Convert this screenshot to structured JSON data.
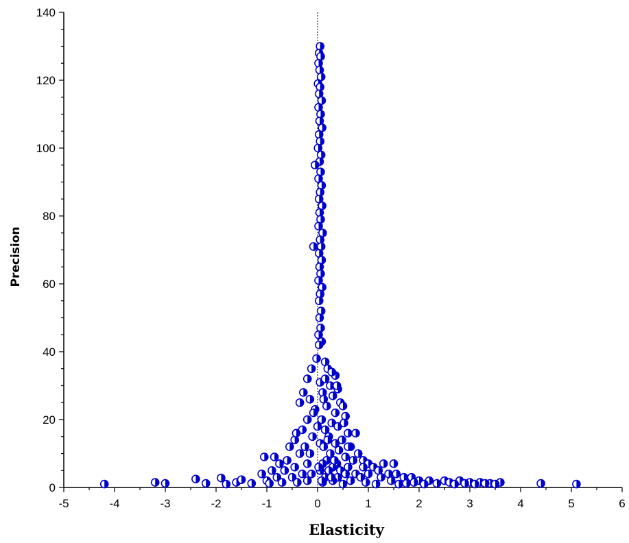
{
  "chart_data": {
    "type": "scatter",
    "title": "",
    "xlabel": "Elasticity",
    "ylabel": "Precision",
    "xlim": [
      -5,
      6
    ],
    "ylim": [
      0,
      140
    ],
    "x_ticks": [
      "-5",
      "-4",
      "-3",
      "-2",
      "-1",
      "0",
      "1",
      "2",
      "3",
      "4",
      "5",
      "6"
    ],
    "y_ticks": [
      "0",
      "20",
      "40",
      "60",
      "80",
      "100",
      "120",
      "140"
    ],
    "reference_line_x": 0,
    "grid": false,
    "legend": "none",
    "marker_color": "#0000CC",
    "points": [
      [
        0.05,
        130
      ],
      [
        0.03,
        128
      ],
      [
        0.06,
        127
      ],
      [
        0.02,
        125
      ],
      [
        0.04,
        123
      ],
      [
        0.07,
        121
      ],
      [
        0.01,
        119
      ],
      [
        0.05,
        118
      ],
      [
        0.03,
        116
      ],
      [
        0.08,
        114
      ],
      [
        0.02,
        112
      ],
      [
        0.06,
        110
      ],
      [
        0.04,
        108
      ],
      [
        0.09,
        106
      ],
      [
        0.03,
        104
      ],
      [
        0.05,
        102
      ],
      [
        0.01,
        100
      ],
      [
        0.07,
        98
      ],
      [
        0.04,
        96
      ],
      [
        -0.05,
        95
      ],
      [
        0.06,
        93
      ],
      [
        0.02,
        91
      ],
      [
        0.08,
        89
      ],
      [
        0.05,
        87
      ],
      [
        0.03,
        85
      ],
      [
        0.09,
        83
      ],
      [
        0.04,
        81
      ],
      [
        0.06,
        79
      ],
      [
        0.02,
        77
      ],
      [
        0.1,
        75
      ],
      [
        0.05,
        73
      ],
      [
        0.07,
        71
      ],
      [
        -0.08,
        71
      ],
      [
        0.03,
        69
      ],
      [
        0.08,
        67
      ],
      [
        0.04,
        65
      ],
      [
        0.06,
        63
      ],
      [
        0.02,
        61
      ],
      [
        0.09,
        59
      ],
      [
        0.05,
        57
      ],
      [
        0.03,
        55
      ],
      [
        0.07,
        52
      ],
      [
        0.04,
        50
      ],
      [
        0.06,
        47
      ],
      [
        0.02,
        45
      ],
      [
        0.08,
        43
      ],
      [
        0.03,
        42
      ],
      [
        -0.02,
        38
      ],
      [
        0.15,
        37
      ],
      [
        -0.12,
        35
      ],
      [
        0.2,
        35
      ],
      [
        0.35,
        33
      ],
      [
        -0.2,
        32
      ],
      [
        0.05,
        31
      ],
      [
        0.25,
        30
      ],
      [
        0.4,
        29
      ],
      [
        -0.28,
        28
      ],
      [
        0.1,
        28
      ],
      [
        0.3,
        27
      ],
      [
        -0.15,
        26
      ],
      [
        0.45,
        25
      ],
      [
        0.5,
        24
      ],
      [
        0.18,
        24
      ],
      [
        -0.05,
        23
      ],
      [
        0.35,
        22
      ],
      [
        0.55,
        21
      ],
      [
        -0.2,
        20
      ],
      [
        0.08,
        20
      ],
      [
        0.28,
        19
      ],
      [
        0.4,
        18
      ],
      [
        -0.3,
        17
      ],
      [
        0.15,
        17
      ],
      [
        0.6,
        16
      ],
      [
        0.75,
        16
      ],
      [
        -0.1,
        15
      ],
      [
        0.22,
        15
      ],
      [
        0.48,
        14
      ],
      [
        -0.45,
        14
      ],
      [
        0.05,
        13
      ],
      [
        0.35,
        13
      ],
      [
        0.65,
        12
      ],
      [
        -0.55,
        12
      ],
      [
        0.12,
        12
      ],
      [
        0.42,
        11
      ],
      [
        0.8,
        10
      ],
      [
        -0.35,
        10
      ],
      [
        0.25,
        10
      ],
      [
        0.55,
        9
      ],
      [
        -1.05,
        9
      ],
      [
        -0.85,
        9
      ],
      [
        0.9,
        8
      ],
      [
        -0.6,
        8
      ],
      [
        0.18,
        8
      ],
      [
        0.7,
        8
      ],
      [
        -0.2,
        7
      ],
      [
        0.38,
        7
      ],
      [
        1.0,
        7
      ],
      [
        -0.75,
        7
      ],
      [
        0.1,
        7
      ],
      [
        1.3,
        7
      ],
      [
        1.5,
        7
      ],
      [
        0.6,
        6
      ],
      [
        -0.45,
        6
      ],
      [
        0.3,
        6
      ],
      [
        0.9,
        6
      ],
      [
        1.1,
        6
      ],
      [
        -0.9,
        5
      ],
      [
        0.05,
        5
      ],
      [
        0.45,
        5
      ],
      [
        1.2,
        5
      ],
      [
        -0.65,
        5
      ],
      [
        0.22,
        5
      ],
      [
        1.4,
        4
      ],
      [
        0.75,
        4
      ],
      [
        -1.1,
        4
      ],
      [
        -0.3,
        4
      ],
      [
        0.55,
        4
      ],
      [
        1.55,
        4
      ],
      [
        1.0,
        4
      ],
      [
        -0.8,
        3
      ],
      [
        0.15,
        3
      ],
      [
        0.85,
        3
      ],
      [
        1.7,
        3
      ],
      [
        1.85,
        3
      ],
      [
        -0.5,
        3
      ],
      [
        0.4,
        3
      ],
      [
        1.25,
        3
      ],
      [
        2.0,
        2
      ],
      [
        2.2,
        2
      ],
      [
        -1.0,
        2
      ],
      [
        -0.2,
        2
      ],
      [
        0.65,
        2
      ],
      [
        1.45,
        2
      ],
      [
        2.5,
        2
      ],
      [
        2.8,
        2
      ],
      [
        3.0,
        1.5
      ],
      [
        3.2,
        1.5
      ],
      [
        3.6,
        1.5
      ],
      [
        0.3,
        2
      ],
      [
        1.9,
        1.5
      ],
      [
        2.6,
        1.5
      ],
      [
        3.4,
        1.2
      ],
      [
        -0.7,
        1.5
      ],
      [
        0.95,
        1.5
      ],
      [
        1.6,
        1
      ],
      [
        2.1,
        1
      ],
      [
        2.7,
        1
      ],
      [
        3.1,
        1
      ],
      [
        3.5,
        1
      ],
      [
        4.4,
        1.2
      ],
      [
        5.1,
        1
      ],
      [
        -4.2,
        1
      ],
      [
        -3.2,
        1.5
      ],
      [
        -3.0,
        1.2
      ],
      [
        -2.4,
        2.5
      ],
      [
        -2.2,
        1.2
      ],
      [
        -1.9,
        2.8
      ],
      [
        -1.8,
        1
      ],
      [
        -1.6,
        1.5
      ],
      [
        -1.5,
        2.3
      ],
      [
        -1.3,
        1.2
      ],
      [
        -0.95,
        1.2
      ],
      [
        -0.4,
        1.5
      ],
      [
        0.1,
        1.5
      ],
      [
        0.5,
        1
      ],
      [
        1.15,
        1
      ],
      [
        1.75,
        1.2
      ],
      [
        2.35,
        1.2
      ],
      [
        2.9,
        1.2
      ],
      [
        3.3,
        1.2
      ],
      [
        -0.15,
        10
      ],
      [
        0.0,
        18
      ],
      [
        -0.08,
        22
      ],
      [
        0.12,
        26
      ],
      [
        0.2,
        14
      ],
      [
        -0.25,
        12
      ],
      [
        0.33,
        8
      ],
      [
        0.02,
        6
      ],
      [
        -0.12,
        4
      ],
      [
        0.27,
        3
      ],
      [
        0.08,
        2
      ],
      [
        -0.35,
        25
      ],
      [
        -0.42,
        16
      ],
      [
        0.52,
        19
      ],
      [
        0.6,
        12
      ],
      [
        0.38,
        30
      ],
      [
        0.15,
        32
      ],
      [
        0.28,
        34
      ]
    ]
  }
}
